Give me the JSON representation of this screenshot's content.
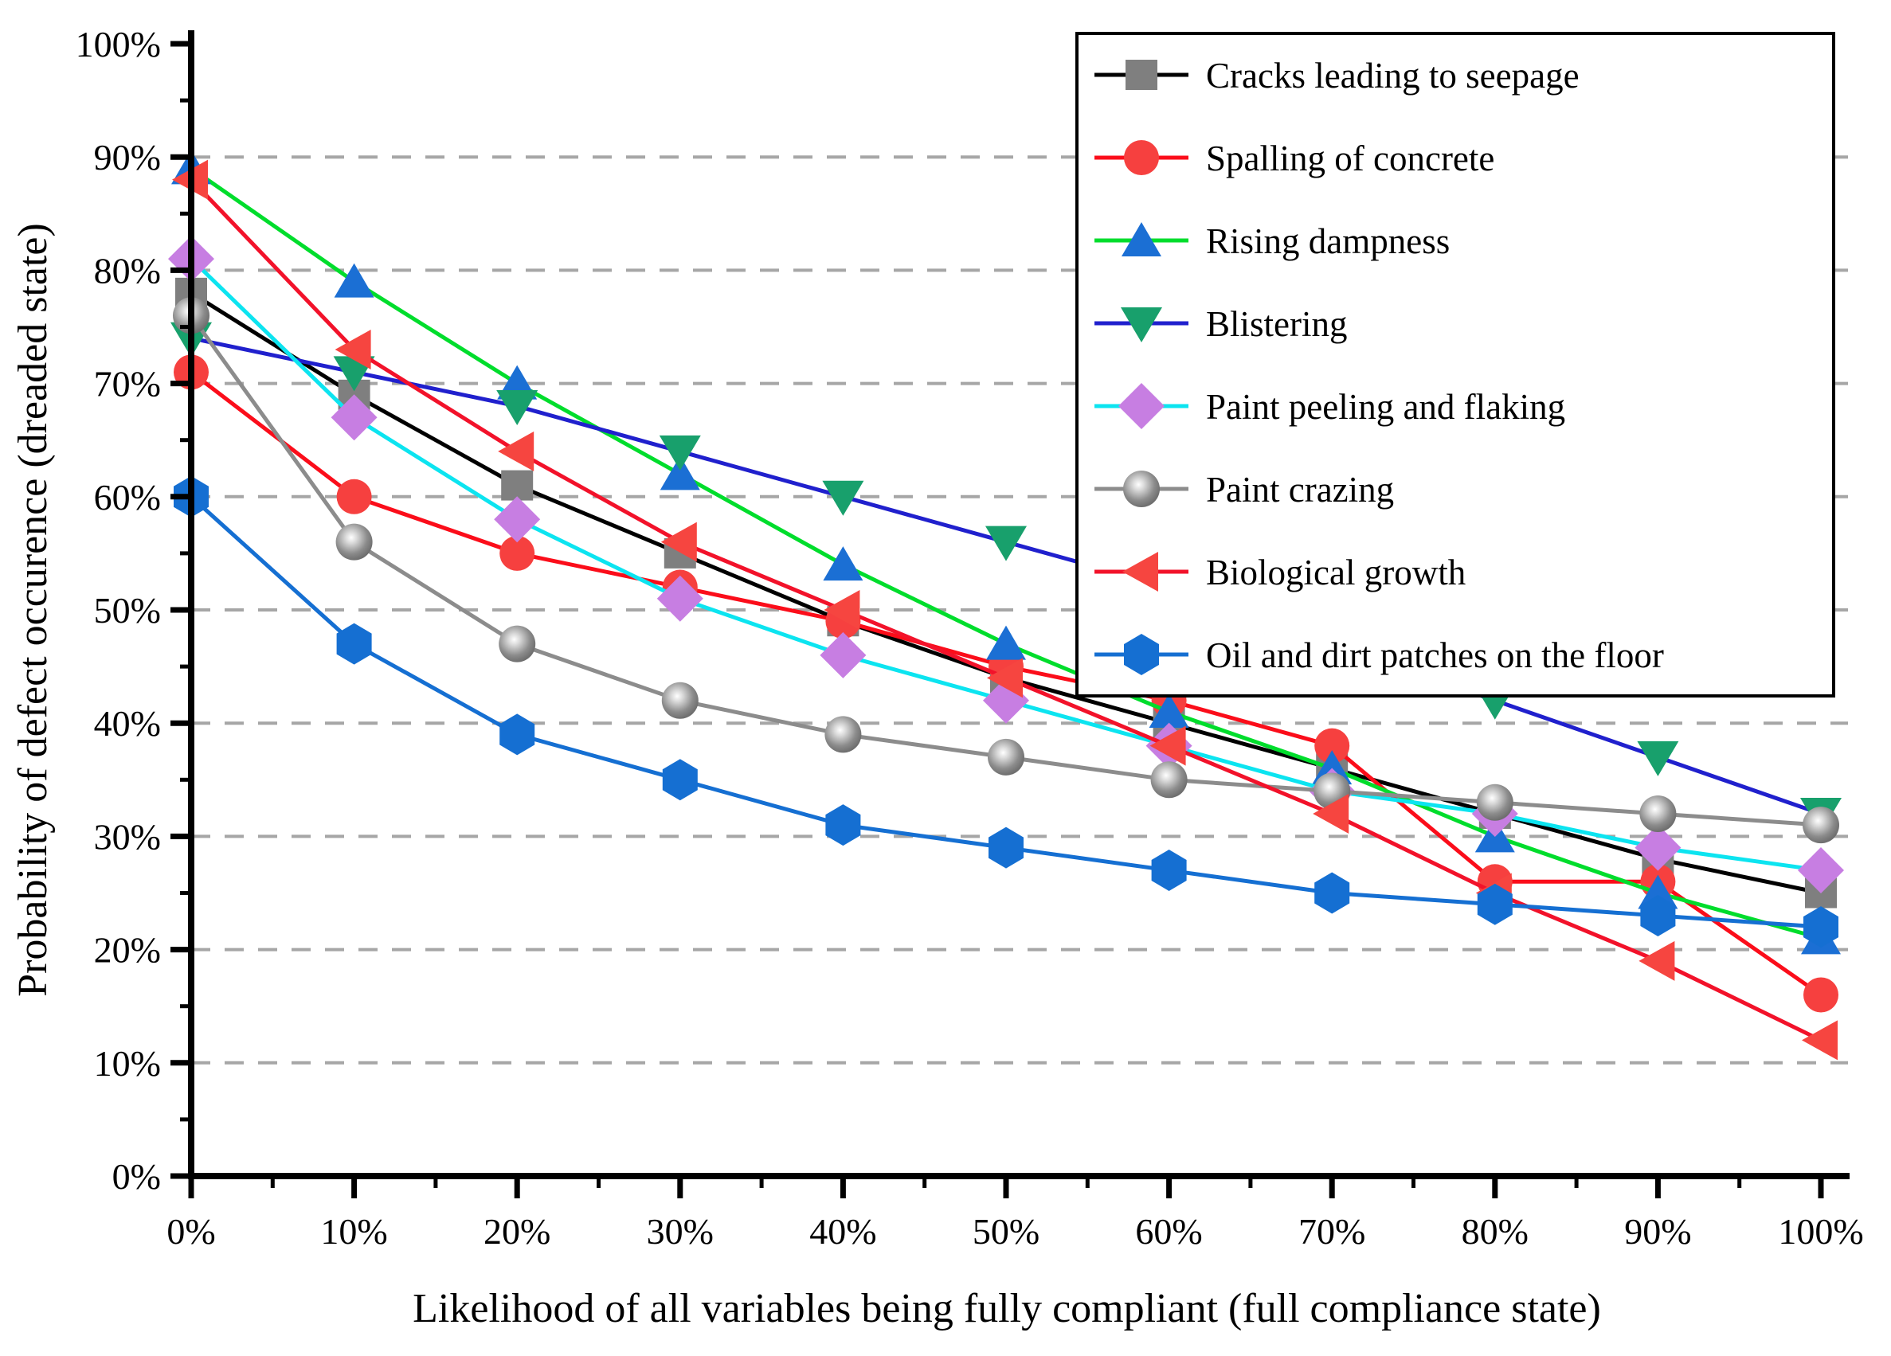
{
  "chart_data": {
    "type": "line",
    "title": "",
    "xlabel": "Likelihood of all variables being fully compliant (full compliance state)",
    "ylabel": "Probability of defect occurence (dreaded state)",
    "x": [
      0,
      10,
      20,
      30,
      40,
      50,
      60,
      70,
      80,
      90,
      100
    ],
    "x_tick_labels": [
      "0%",
      "10%",
      "20%",
      "30%",
      "40%",
      "50%",
      "60%",
      "70%",
      "80%",
      "90%",
      "100%"
    ],
    "y_ticks": [
      0,
      10,
      20,
      30,
      40,
      50,
      60,
      70,
      80,
      90,
      100
    ],
    "y_tick_labels": [
      "0%",
      "10%",
      "20%",
      "30%",
      "40%",
      "50%",
      "60%",
      "70%",
      "80%",
      "90%",
      "100%"
    ],
    "xlim": [
      0,
      100
    ],
    "ylim": [
      0,
      100
    ],
    "grid": "horizontal-dashed-every-10pct",
    "grid_color": "#a6a6a6",
    "legend_position": "top-right",
    "series": [
      {
        "name": "Cracks leading to seepage",
        "marker": "square",
        "marker_color": "#7f7f7f",
        "line_color": "#000000",
        "values": [
          78,
          69,
          61,
          55,
          49,
          44,
          40,
          36,
          32,
          28,
          25
        ]
      },
      {
        "name": "Spalling of concrete",
        "marker": "circle",
        "marker_color": "#f6403f",
        "line_color": "#fb0d1a",
        "values": [
          71,
          60,
          55,
          52,
          49,
          45,
          42,
          38,
          26,
          26,
          16
        ]
      },
      {
        "name": "Rising dampness",
        "marker": "triangle-up",
        "marker_color": "#1b6fd4",
        "line_color": "#00dd2c",
        "values": [
          89,
          79,
          70,
          62,
          54,
          47,
          41,
          36,
          30,
          25,
          21
        ]
      },
      {
        "name": "Blistering",
        "marker": "triangle-down",
        "marker_color": "#18a06c",
        "line_color": "#2020cd",
        "values": [
          74,
          71,
          68,
          64,
          60,
          56,
          52,
          47,
          42,
          37,
          32
        ]
      },
      {
        "name": "Paint peeling and flaking",
        "marker": "diamond",
        "marker_color": "#c77ee2",
        "line_color": "#0ce4f0",
        "values": [
          81,
          67,
          58,
          51,
          46,
          42,
          38,
          34,
          32,
          29,
          27
        ]
      },
      {
        "name": "Paint crazing",
        "marker": "sphere",
        "marker_color": "#8c8c8c",
        "line_color": "#8c8c8c",
        "values": [
          76,
          56,
          47,
          42,
          39,
          37,
          35,
          34,
          33,
          32,
          31
        ]
      },
      {
        "name": "Biological growth",
        "marker": "triangle-left",
        "marker_color": "#f64540",
        "line_color": "#f2122a",
        "values": [
          88,
          73,
          64,
          56,
          50,
          44,
          38,
          32,
          25,
          19,
          12
        ]
      },
      {
        "name": "Oil and dirt patches on the floor",
        "marker": "hexagon",
        "marker_color": "#156fd2",
        "line_color": "#156fd2",
        "values": [
          60,
          47,
          39,
          35,
          31,
          29,
          27,
          25,
          24,
          23,
          22
        ]
      }
    ]
  }
}
